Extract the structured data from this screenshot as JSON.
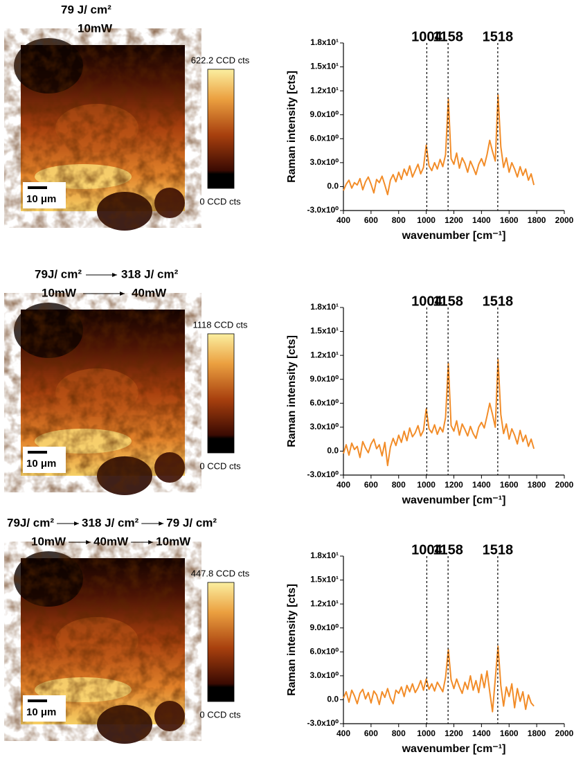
{
  "maps": [
    {
      "title": [
        [
          "79 J/ cm²"
        ],
        [
          "10mW"
        ]
      ],
      "colorbar_max": "622.2 CCD cts",
      "colorbar_min": "0 CCD cts",
      "scale_bar": "10 μm"
    },
    {
      "title": [
        [
          "79J/ cm²",
          "318 J/ cm²"
        ],
        [
          "10mW",
          "40mW"
        ]
      ],
      "colorbar_max": "1118 CCD cts",
      "colorbar_min": "0 CCD cts",
      "scale_bar": "10 μm"
    },
    {
      "title": [
        [
          "79J/ cm²",
          "318 J/ cm²",
          "79 J/ cm²"
        ],
        [
          "10mW",
          "40mW",
          "10mW"
        ]
      ],
      "colorbar_max": "447.8 CCD cts",
      "colorbar_min": "0 CCD cts",
      "scale_bar": "10 μm"
    }
  ],
  "chart_data": [
    {
      "type": "line",
      "x_label": "wavenumber [cm⁻¹]",
      "y_label": "Raman intensity [cts]",
      "peaks": [
        1004,
        1158,
        1518
      ],
      "xlim": [
        400,
        2000
      ],
      "xticks": [
        400,
        600,
        800,
        1000,
        1200,
        1400,
        1600,
        1800,
        2000
      ],
      "ylim": [
        -3,
        18
      ],
      "yticks": [
        {
          "value": -3,
          "label": "-3.0x10⁰"
        },
        {
          "value": 0,
          "label": "0.0"
        },
        {
          "value": 3,
          "label": "3.0x10⁰"
        },
        {
          "value": 6,
          "label": "6.0x10⁰"
        },
        {
          "value": 9,
          "label": "9.0x10⁰"
        },
        {
          "value": 12,
          "label": "1.2x10¹"
        },
        {
          "value": 15,
          "label": "1.5x10¹"
        },
        {
          "value": 18,
          "label": "1.8x10¹"
        }
      ],
      "x": [
        400,
        420,
        440,
        460,
        480,
        500,
        520,
        540,
        560,
        580,
        600,
        620,
        640,
        660,
        680,
        700,
        720,
        740,
        760,
        780,
        800,
        820,
        840,
        860,
        880,
        900,
        920,
        940,
        960,
        980,
        1000,
        1020,
        1040,
        1060,
        1080,
        1100,
        1120,
        1140,
        1160,
        1180,
        1200,
        1220,
        1240,
        1260,
        1280,
        1300,
        1320,
        1340,
        1360,
        1380,
        1400,
        1420,
        1440,
        1460,
        1480,
        1500,
        1520,
        1540,
        1560,
        1580,
        1600,
        1620,
        1640,
        1660,
        1680,
        1700,
        1720,
        1740,
        1760,
        1780
      ],
      "series": [
        {
          "color": "#f28c28",
          "values": [
            -0.5,
            0.3,
            0.8,
            -0.2,
            0.5,
            0.2,
            1.0,
            -0.4,
            0.6,
            1.2,
            0.3,
            -0.8,
            0.9,
            0.5,
            1.3,
            0.2,
            -1.0,
            0.8,
            1.5,
            0.6,
            1.8,
            0.9,
            2.2,
            1.4,
            2.6,
            1.2,
            2.0,
            2.8,
            1.6,
            2.4,
            5.2,
            2.6,
            2.0,
            3.0,
            2.2,
            3.4,
            2.5,
            4.0,
            11.0,
            3.5,
            2.8,
            4.2,
            2.3,
            3.6,
            2.9,
            1.8,
            3.2,
            2.4,
            1.5,
            2.8,
            3.5,
            2.6,
            4.0,
            5.8,
            4.4,
            3.2,
            11.5,
            5.0,
            2.4,
            3.6,
            1.8,
            3.0,
            2.2,
            1.2,
            2.5,
            1.4,
            2.2,
            0.8,
            1.6,
            0.2
          ]
        }
      ]
    },
    {
      "type": "line",
      "x_label": "wavenumber [cm⁻¹]",
      "y_label": "Raman intensity [cts]",
      "peaks": [
        1004,
        1158,
        1518
      ],
      "xlim": [
        400,
        2000
      ],
      "xticks": [
        400,
        600,
        800,
        1000,
        1200,
        1400,
        1600,
        1800,
        2000
      ],
      "ylim": [
        -3,
        18
      ],
      "yticks": [
        {
          "value": -3,
          "label": "-3.0x10⁰"
        },
        {
          "value": 0,
          "label": "0.0"
        },
        {
          "value": 3,
          "label": "3.0x10⁰"
        },
        {
          "value": 6,
          "label": "6.0x10⁰"
        },
        {
          "value": 9,
          "label": "9.0x10⁰"
        },
        {
          "value": 12,
          "label": "1.2x10¹"
        },
        {
          "value": 15,
          "label": "1.5x10¹"
        },
        {
          "value": 18,
          "label": "1.8x10¹"
        }
      ],
      "x": [
        400,
        420,
        440,
        460,
        480,
        500,
        520,
        540,
        560,
        580,
        600,
        620,
        640,
        660,
        680,
        700,
        720,
        740,
        760,
        780,
        800,
        820,
        840,
        860,
        880,
        900,
        920,
        940,
        960,
        980,
        1000,
        1020,
        1040,
        1060,
        1080,
        1100,
        1120,
        1140,
        1160,
        1180,
        1200,
        1220,
        1240,
        1260,
        1280,
        1300,
        1320,
        1340,
        1360,
        1380,
        1400,
        1420,
        1440,
        1460,
        1480,
        1500,
        1520,
        1540,
        1560,
        1580,
        1600,
        1620,
        1640,
        1660,
        1680,
        1700,
        1720,
        1740,
        1760,
        1780
      ],
      "series": [
        {
          "color": "#f28c28",
          "values": [
            -0.3,
            0.8,
            -0.5,
            1.0,
            0.2,
            0.6,
            -0.8,
            1.2,
            0.4,
            -0.2,
            0.9,
            1.5,
            0.3,
            0.8,
            -0.6,
            1.1,
            -1.8,
            0.5,
            1.6,
            0.7,
            2.0,
            1.1,
            2.5,
            1.3,
            2.9,
            1.8,
            2.3,
            3.2,
            1.9,
            2.6,
            5.3,
            2.8,
            2.3,
            3.3,
            2.1,
            3.0,
            2.4,
            4.2,
            11.0,
            3.2,
            2.5,
            3.8,
            2.0,
            3.4,
            2.7,
            1.9,
            3.1,
            2.2,
            1.6,
            3.0,
            3.6,
            2.9,
            4.4,
            6.0,
            4.6,
            3.0,
            11.5,
            4.6,
            2.2,
            3.4,
            1.5,
            2.8,
            2.0,
            0.9,
            2.6,
            1.2,
            2.0,
            0.6,
            1.5,
            0.3
          ]
        }
      ]
    },
    {
      "type": "line",
      "x_label": "wavenumber [cm⁻¹]",
      "y_label": "Raman intensity [cts]",
      "peaks": [
        1004,
        1158,
        1518
      ],
      "xlim": [
        400,
        2000
      ],
      "xticks": [
        400,
        600,
        800,
        1000,
        1200,
        1400,
        1600,
        1800,
        2000
      ],
      "ylim": [
        -3,
        18
      ],
      "yticks": [
        {
          "value": -3,
          "label": "-3.0x10⁰"
        },
        {
          "value": 0,
          "label": "0.0"
        },
        {
          "value": 3,
          "label": "3.0x10⁰"
        },
        {
          "value": 6,
          "label": "6.0x10⁰"
        },
        {
          "value": 9,
          "label": "9.0x10⁰"
        },
        {
          "value": 12,
          "label": "1.2x10¹"
        },
        {
          "value": 15,
          "label": "1.5x10¹"
        },
        {
          "value": 18,
          "label": "1.8x10¹"
        }
      ],
      "x": [
        400,
        420,
        440,
        460,
        480,
        500,
        520,
        540,
        560,
        580,
        600,
        620,
        640,
        660,
        680,
        700,
        720,
        740,
        760,
        780,
        800,
        820,
        840,
        860,
        880,
        900,
        920,
        940,
        960,
        980,
        1000,
        1020,
        1040,
        1060,
        1080,
        1100,
        1120,
        1140,
        1160,
        1180,
        1200,
        1220,
        1240,
        1260,
        1280,
        1300,
        1320,
        1340,
        1360,
        1380,
        1400,
        1420,
        1440,
        1460,
        1480,
        1500,
        1520,
        1540,
        1560,
        1580,
        1600,
        1620,
        1640,
        1660,
        1680,
        1700,
        1720,
        1740,
        1760,
        1780
      ],
      "series": [
        {
          "color": "#f28c28",
          "values": [
            0.2,
            1.0,
            -0.3,
            1.2,
            0.5,
            -0.5,
            0.8,
            1.3,
            0.1,
            0.9,
            -0.4,
            1.1,
            0.6,
            -0.6,
            1.0,
            0.3,
            1.4,
            0.2,
            -0.5,
            1.2,
            0.8,
            1.6,
            0.4,
            1.8,
            1.0,
            2.0,
            0.9,
            1.5,
            2.4,
            1.2,
            2.6,
            1.3,
            2.0,
            1.1,
            2.2,
            1.6,
            1.0,
            2.8,
            6.3,
            2.5,
            1.4,
            2.6,
            1.6,
            0.8,
            2.2,
            1.3,
            3.0,
            1.2,
            2.4,
            0.9,
            3.2,
            1.5,
            3.6,
            1.0,
            -1.5,
            2.6,
            6.7,
            1.8,
            -0.8,
            1.6,
            0.4,
            2.0,
            -1.0,
            1.4,
            -0.2,
            1.0,
            -1.2,
            0.6,
            -0.4,
            -0.8
          ]
        }
      ]
    }
  ]
}
